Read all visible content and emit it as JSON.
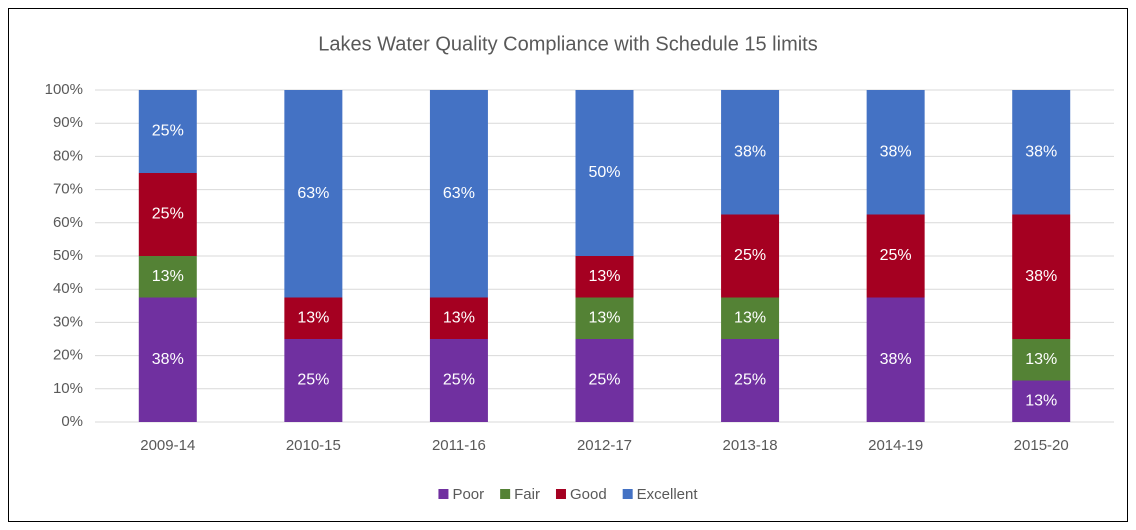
{
  "chart_data": {
    "type": "stacked_bar",
    "title": "Lakes Water Quality Compliance with Schedule 15 limits",
    "categories": [
      "2009-14",
      "2010-15",
      "2011-16",
      "2012-17",
      "2013-18",
      "2014-19",
      "2015-20"
    ],
    "series": [
      {
        "name": "Poor",
        "color": "#7030a0",
        "values": [
          37.5,
          25,
          25,
          25,
          25,
          37.5,
          12.5
        ],
        "value_labels": [
          "38%",
          "25%",
          "25%",
          "25%",
          "25%",
          "38%",
          "13%"
        ]
      },
      {
        "name": "Fair",
        "color": "#548235",
        "values": [
          12.5,
          0,
          0,
          12.5,
          12.5,
          0,
          12.5
        ],
        "value_labels": [
          "13%",
          null,
          null,
          "13%",
          "13%",
          null,
          "13%"
        ]
      },
      {
        "name": "Good",
        "color": "#a50021",
        "values": [
          25,
          12.5,
          12.5,
          12.5,
          25,
          25,
          37.5
        ],
        "value_labels": [
          "25%",
          "13%",
          "13%",
          "13%",
          "25%",
          "25%",
          "38%"
        ]
      },
      {
        "name": "Excellent",
        "color": "#4472c4",
        "values": [
          25,
          62.5,
          62.5,
          50,
          37.5,
          37.5,
          37.5
        ],
        "value_labels": [
          "25%",
          "63%",
          "63%",
          "50%",
          "38%",
          "38%",
          "38%"
        ]
      }
    ],
    "ylim": [
      0,
      100
    ],
    "yticks": [
      {
        "value": 0,
        "label": "0%"
      },
      {
        "value": 10,
        "label": "10%"
      },
      {
        "value": 20,
        "label": "20%"
      },
      {
        "value": 30,
        "label": "30%"
      },
      {
        "value": 40,
        "label": "40%"
      },
      {
        "value": 50,
        "label": "50%"
      },
      {
        "value": 60,
        "label": "60%"
      },
      {
        "value": 70,
        "label": "70%"
      },
      {
        "value": 80,
        "label": "80%"
      },
      {
        "value": 90,
        "label": "90%"
      },
      {
        "value": 100,
        "label": "100%"
      }
    ],
    "grid": true,
    "legend": "bottom"
  }
}
